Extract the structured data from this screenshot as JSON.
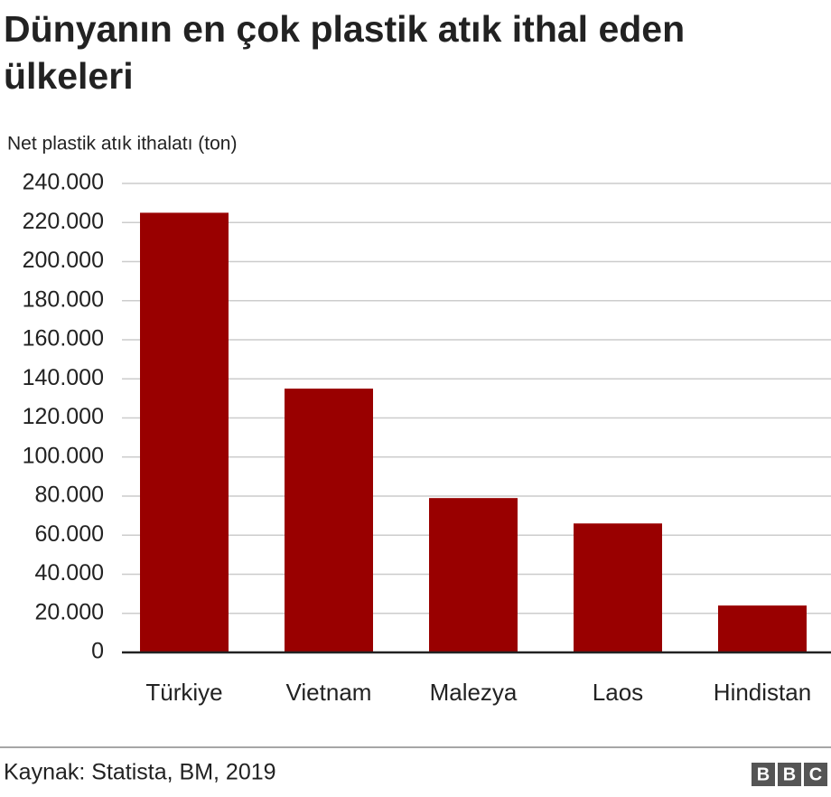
{
  "chart_data": {
    "type": "bar",
    "title": "Dünyanın en çok plastik atık ithal eden ülkeleri",
    "subtitle": "Net plastik atık ithalatı (ton)",
    "categories": [
      "Türkiye",
      "Vietnam",
      "Malezya",
      "Laos",
      "Hindistan"
    ],
    "values": [
      225000,
      135000,
      79000,
      66000,
      24000
    ],
    "color": "#990000",
    "ylim": [
      0,
      240000
    ],
    "yticks": [
      0,
      {
        "value": 20000,
        "label": "20.000"
      },
      {
        "value": 40000,
        "label": "40.000"
      },
      {
        "value": 60000,
        "label": "60.000"
      },
      {
        "value": 80000,
        "label": "80.000"
      },
      {
        "value": 100000,
        "label": "100.000"
      },
      {
        "value": 120000,
        "label": "120.000"
      },
      {
        "value": 140000,
        "label": "140.000"
      },
      {
        "value": 160000,
        "label": "160.000"
      },
      {
        "value": 180000,
        "label": "180.000"
      },
      {
        "value": 200000,
        "label": "200.000"
      },
      {
        "value": 220000,
        "label": "220.000"
      },
      {
        "value": 240000,
        "label": "240.000"
      }
    ],
    "grid": true,
    "source": "Kaynak: Statista, BM, 2019",
    "logo": [
      "B",
      "B",
      "C"
    ]
  }
}
